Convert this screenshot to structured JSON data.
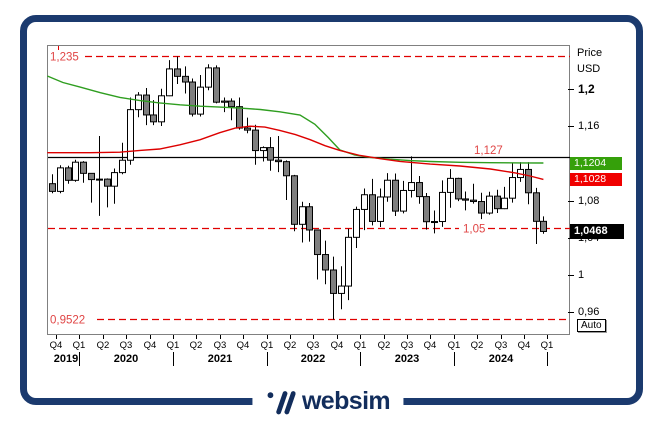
{
  "window": {
    "description_label": ""
  },
  "price_axis": {
    "title_line1": "Price",
    "title_line2": "USD",
    "ticks": [
      {
        "label": "1,2",
        "value": 1.2,
        "bold": true
      },
      {
        "label": "1,16",
        "value": 1.16,
        "bold": false
      },
      {
        "label": "1,08",
        "value": 1.08,
        "bold": false
      },
      {
        "label": "1,04",
        "value": 1.04,
        "bold": false
      },
      {
        "label": "1",
        "value": 1.0,
        "bold": false
      },
      {
        "label": "0,96",
        "value": 0.96,
        "bold": false
      }
    ],
    "badges": [
      {
        "name": "ma-green-value-badge",
        "label": "1,1204",
        "value": 1.1204,
        "color": "#35a00a",
        "bold": false
      },
      {
        "name": "ma-red-value-badge",
        "label": "1,1028",
        "value": 1.1028,
        "color": "#f00000",
        "bold": false
      },
      {
        "name": "last-price-badge",
        "label": "1,0468",
        "value": 1.0468,
        "color": "#000000",
        "bold": true
      }
    ],
    "auto_button_label": "Auto"
  },
  "time_axis": {
    "quarters": [
      "Q4",
      "Q1",
      "Q2",
      "Q3",
      "Q4",
      "Q1",
      "Q2",
      "Q3",
      "Q4",
      "Q1",
      "Q2",
      "Q3",
      "Q4",
      "Q1",
      "Q2",
      "Q3",
      "Q4",
      "Q1",
      "Q2",
      "Q3",
      "Q4",
      "Q1"
    ],
    "years": [
      "2019",
      "2020",
      "2021",
      "2022",
      "2023",
      "2024"
    ]
  },
  "logo": {
    "text": "websim"
  },
  "colors": {
    "card_border": "#1b3a6e",
    "logo_navy": "#122d5c",
    "plot_border": "#808080",
    "candle_up_fill": "#ffffff",
    "candle_down_fill": "#7f7f7f",
    "candle_stroke": "#000000",
    "level_line_red": "#e00000",
    "level_label_red": "#e04545",
    "pivot_line_black": "#000000",
    "ma_green": "#2f9e20",
    "ma_red": "#dd0000"
  },
  "chart_data": {
    "type": "candlestick",
    "title": "",
    "ylabel": "Price USD",
    "timeframe": "monthly",
    "start_month": "2019-09",
    "end_month": "2024-12",
    "ylim": [
      0.9355,
      1.2473
    ],
    "grid": false,
    "yticks": [
      1.2,
      1.16,
      1.08,
      1.04,
      1.0,
      0.96
    ],
    "last_price": 1.0468,
    "levels": [
      {
        "label": "1,235",
        "value": 1.235,
        "style": "dashed-red",
        "label_side": "left"
      },
      {
        "label": "1,127",
        "value": 1.127,
        "style": "solid-black",
        "label_side": "right"
      },
      {
        "label": "1,05",
        "value": 1.05,
        "style": "dashed-red",
        "label_side": "right"
      },
      {
        "label": "0,9522",
        "value": 0.9522,
        "style": "dashed-red",
        "label_side": "left"
      }
    ],
    "candles": [
      [
        1.0982,
        1.1084,
        1.0879,
        1.0899
      ],
      [
        1.0899,
        1.118,
        1.0879,
        1.1152
      ],
      [
        1.1152,
        1.1175,
        1.0981,
        1.1018
      ],
      [
        1.1018,
        1.1239,
        1.1003,
        1.1213
      ],
      [
        1.1213,
        1.1225,
        1.0992,
        1.1093
      ],
      [
        1.1093,
        1.1096,
        1.0778,
        1.1026
      ],
      [
        1.1026,
        1.1495,
        1.0636,
        1.1031
      ],
      [
        1.1031,
        1.1039,
        1.0727,
        1.0955
      ],
      [
        1.0955,
        1.1145,
        1.0766,
        1.1101
      ],
      [
        1.1101,
        1.1422,
        1.1084,
        1.1234
      ],
      [
        1.1234,
        1.1909,
        1.1185,
        1.1778
      ],
      [
        1.1778,
        1.1966,
        1.1696,
        1.1935
      ],
      [
        1.1935,
        1.2011,
        1.1612,
        1.1721
      ],
      [
        1.1721,
        1.1881,
        1.1612,
        1.1647
      ],
      [
        1.1647,
        1.2003,
        1.1602,
        1.1927
      ],
      [
        1.1927,
        1.231,
        1.1923,
        1.2216
      ],
      [
        1.2216,
        1.2349,
        1.2054,
        1.2136
      ],
      [
        1.2136,
        1.2243,
        1.1952,
        1.2075
      ],
      [
        1.2075,
        1.2113,
        1.1704,
        1.173
      ],
      [
        1.173,
        1.215,
        1.1704,
        1.202
      ],
      [
        1.202,
        1.2266,
        1.1986,
        1.2227
      ],
      [
        1.2227,
        1.2254,
        1.1845,
        1.1858
      ],
      [
        1.1858,
        1.1909,
        1.1752,
        1.187
      ],
      [
        1.187,
        1.1899,
        1.1664,
        1.181
      ],
      [
        1.181,
        1.1909,
        1.1563,
        1.158
      ],
      [
        1.158,
        1.1692,
        1.1524,
        1.1558
      ],
      [
        1.1558,
        1.1616,
        1.1186,
        1.1338
      ],
      [
        1.1338,
        1.1383,
        1.1221,
        1.137
      ],
      [
        1.137,
        1.1483,
        1.1121,
        1.1235
      ],
      [
        1.1235,
        1.1495,
        1.1106,
        1.1219
      ],
      [
        1.1219,
        1.1233,
        1.0806,
        1.1067
      ],
      [
        1.1067,
        1.1076,
        1.0471,
        1.0545
      ],
      [
        1.0545,
        1.0787,
        1.0349,
        1.0734
      ],
      [
        1.0734,
        1.0774,
        1.0359,
        1.0484
      ],
      [
        1.0484,
        1.0486,
        0.9952,
        1.022
      ],
      [
        1.022,
        1.0369,
        0.99,
        1.0054
      ],
      [
        1.0054,
        1.0198,
        0.9522,
        0.9802
      ],
      [
        0.9802,
        1.0094,
        0.9632,
        0.9881
      ],
      [
        0.9881,
        1.0497,
        0.973,
        1.0405
      ],
      [
        1.0405,
        1.0735,
        1.029,
        1.0705
      ],
      [
        1.0705,
        1.093,
        1.0483,
        1.0863
      ],
      [
        1.0863,
        1.1033,
        1.0533,
        1.0576
      ],
      [
        1.0576,
        1.093,
        1.0516,
        1.0839
      ],
      [
        1.0839,
        1.1095,
        1.0788,
        1.1019
      ],
      [
        1.1019,
        1.1091,
        1.0635,
        1.0687
      ],
      [
        1.0687,
        1.1012,
        1.0662,
        1.0909
      ],
      [
        1.0909,
        1.1276,
        1.0834,
        1.0994
      ],
      [
        1.0994,
        1.1064,
        1.0766,
        1.0843
      ],
      [
        1.0843,
        1.0882,
        1.0488,
        1.0573
      ],
      [
        1.0573,
        1.0694,
        1.0448,
        1.0575
      ],
      [
        1.0575,
        1.1017,
        1.0517,
        1.0888
      ],
      [
        1.0888,
        1.1139,
        1.0723,
        1.1039
      ],
      [
        1.1039,
        1.1046,
        1.0795,
        1.0818
      ],
      [
        1.0818,
        1.0898,
        1.0695,
        1.0805
      ],
      [
        1.0805,
        1.0981,
        1.0768,
        1.079
      ],
      [
        1.079,
        1.0885,
        1.0601,
        1.0666
      ],
      [
        1.0666,
        1.0895,
        1.0649,
        1.0848
      ],
      [
        1.0848,
        1.0916,
        1.0667,
        1.0713
      ],
      [
        1.0713,
        1.0948,
        1.0709,
        1.0826
      ],
      [
        1.0826,
        1.1201,
        1.0778,
        1.1048
      ],
      [
        1.1048,
        1.1214,
        1.1002,
        1.1135
      ],
      [
        1.1135,
        1.1214,
        1.0761,
        1.0884
      ],
      [
        1.0884,
        1.0937,
        1.0333,
        1.0577
      ],
      [
        1.0577,
        1.063,
        1.0443,
        1.0468
      ]
    ],
    "moving_averages": [
      {
        "name": "ma-green",
        "color": "#2f9e20",
        "end_value": 1.1204,
        "points": [
          [
            -0.6,
            1.214
          ],
          [
            1.4,
            1.207
          ],
          [
            3.6,
            1.202
          ],
          [
            6.2,
            1.196
          ],
          [
            8.7,
            1.191
          ],
          [
            11.3,
            1.1875
          ],
          [
            13.8,
            1.185
          ],
          [
            16.4,
            1.183
          ],
          [
            19.0,
            1.1815
          ],
          [
            21.5,
            1.1805
          ],
          [
            24.1,
            1.1795
          ],
          [
            26.7,
            1.178
          ],
          [
            29.2,
            1.1755
          ],
          [
            31.8,
            1.172
          ],
          [
            33.7,
            1.162
          ],
          [
            35.4,
            1.148
          ],
          [
            36.9,
            1.1345
          ],
          [
            38.8,
            1.129
          ],
          [
            40.8,
            1.1265
          ],
          [
            43.3,
            1.1245
          ],
          [
            45.9,
            1.123
          ],
          [
            48.5,
            1.122
          ],
          [
            52.3,
            1.1212
          ],
          [
            56.2,
            1.1208
          ],
          [
            60.0,
            1.1205
          ],
          [
            63.0,
            1.1204
          ]
        ]
      },
      {
        "name": "ma-red",
        "color": "#dd0000",
        "end_value": 1.1028,
        "points": [
          [
            -0.6,
            1.1315
          ],
          [
            4.9,
            1.1315
          ],
          [
            8.7,
            1.132
          ],
          [
            11.3,
            1.134
          ],
          [
            13.8,
            1.1355
          ],
          [
            16.4,
            1.14
          ],
          [
            19.0,
            1.1455
          ],
          [
            21.5,
            1.153
          ],
          [
            23.5,
            1.158
          ],
          [
            25.4,
            1.16
          ],
          [
            27.3,
            1.159
          ],
          [
            29.2,
            1.1555
          ],
          [
            31.2,
            1.151
          ],
          [
            33.1,
            1.1455
          ],
          [
            35.0,
            1.139
          ],
          [
            36.9,
            1.134
          ],
          [
            39.5,
            1.1285
          ],
          [
            42.1,
            1.125
          ],
          [
            44.6,
            1.1222
          ],
          [
            48.5,
            1.1193
          ],
          [
            52.3,
            1.1172
          ],
          [
            56.2,
            1.114
          ],
          [
            59.4,
            1.1098
          ],
          [
            61.3,
            1.1065
          ],
          [
            63.0,
            1.1028
          ]
        ]
      }
    ]
  }
}
